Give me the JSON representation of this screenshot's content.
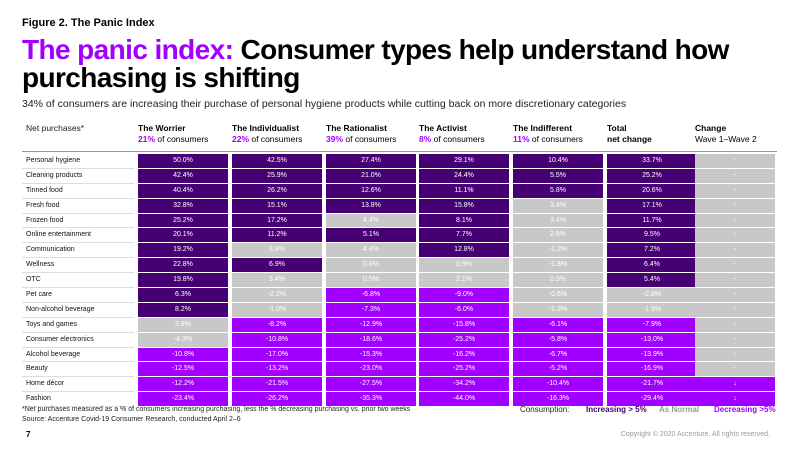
{
  "figure_label": "Figure 2. The Panic Index",
  "title_accent": "The panic index:",
  "title_rest": " Consumer types help understand how purchasing is shifting",
  "subtitle": "34% of consumers are increasing their purchase of personal hygiene products while cutting back on more discretionary categories",
  "header": {
    "net_purchases": "Net purchases*",
    "columns": [
      {
        "name": "The Worrier",
        "share": "21%",
        "share_suffix": " of consumers"
      },
      {
        "name": "The Individualist",
        "share": "22%",
        "share_suffix": " of consumers"
      },
      {
        "name": "The Rationalist",
        "share": "39%",
        "share_suffix": " of consumers"
      },
      {
        "name": "The Activist",
        "share": "8%",
        "share_suffix": " of consumers"
      },
      {
        "name": "The Indifferent",
        "share": "11%",
        "share_suffix": " of consumers"
      },
      {
        "name": "Total",
        "line2": "net change"
      },
      {
        "name": "Change",
        "line2": "Wave 1–Wave 2"
      }
    ]
  },
  "colors": {
    "increasing": "#460073",
    "normal": "#c8c8c8",
    "decreasing": "#a100ff"
  },
  "chart_data": {
    "type": "table",
    "columns": [
      "The Worrier",
      "The Individualist",
      "The Rationalist",
      "The Activist",
      "The Indifferent",
      "Total net change",
      "Change Wave 1–Wave 2"
    ],
    "rows": [
      {
        "label": "Personal hygiene",
        "cells": [
          [
            "50.0%",
            "inc"
          ],
          [
            "42.5%",
            "inc"
          ],
          [
            "27.4%",
            "inc"
          ],
          [
            "29.1%",
            "inc"
          ],
          [
            "10.4%",
            "inc"
          ],
          [
            "33.7%",
            "inc"
          ],
          [
            "-",
            "norm"
          ]
        ]
      },
      {
        "label": "Cleaning products",
        "cells": [
          [
            "42.4%",
            "inc"
          ],
          [
            "25.9%",
            "inc"
          ],
          [
            "21.0%",
            "inc"
          ],
          [
            "24.4%",
            "inc"
          ],
          [
            "5.5%",
            "inc"
          ],
          [
            "25.2%",
            "inc"
          ],
          [
            "-",
            "norm"
          ]
        ]
      },
      {
        "label": "Tinned food",
        "cells": [
          [
            "40.4%",
            "inc"
          ],
          [
            "26.2%",
            "inc"
          ],
          [
            "12.6%",
            "inc"
          ],
          [
            "11.1%",
            "inc"
          ],
          [
            "5.8%",
            "inc"
          ],
          [
            "20.6%",
            "inc"
          ],
          [
            "-",
            "norm"
          ]
        ]
      },
      {
        "label": "Fresh food",
        "cells": [
          [
            "32.8%",
            "inc"
          ],
          [
            "15.1%",
            "inc"
          ],
          [
            "13.8%",
            "inc"
          ],
          [
            "15.8%",
            "inc"
          ],
          [
            "3.4%",
            "norm"
          ],
          [
            "17.1%",
            "inc"
          ],
          [
            "-",
            "norm"
          ]
        ]
      },
      {
        "label": "Frozen food",
        "cells": [
          [
            "25.2%",
            "inc"
          ],
          [
            "17.2%",
            "inc"
          ],
          [
            "4.4%",
            "norm"
          ],
          [
            "8.1%",
            "inc"
          ],
          [
            "3.4%",
            "norm"
          ],
          [
            "11.7%",
            "inc"
          ],
          [
            "-",
            "norm"
          ]
        ]
      },
      {
        "label": "Online entertainment",
        "cells": [
          [
            "20.1%",
            "inc"
          ],
          [
            "11.2%",
            "inc"
          ],
          [
            "5.1%",
            "inc"
          ],
          [
            "7.7%",
            "inc"
          ],
          [
            "2.8%",
            "norm"
          ],
          [
            "9.5%",
            "inc"
          ],
          [
            "-",
            "norm"
          ]
        ]
      },
      {
        "label": "Communication",
        "cells": [
          [
            "19.2%",
            "inc"
          ],
          [
            "3.8%",
            "norm"
          ],
          [
            "4.4%",
            "norm"
          ],
          [
            "12.8%",
            "inc"
          ],
          [
            "-1.2%",
            "norm"
          ],
          [
            "7.2%",
            "inc"
          ],
          [
            "-",
            "norm"
          ]
        ]
      },
      {
        "label": "Wellness",
        "cells": [
          [
            "22.8%",
            "inc"
          ],
          [
            "6.9%",
            "inc"
          ],
          [
            "0.6%",
            "norm"
          ],
          [
            "0.9%",
            "norm"
          ],
          [
            "-1.8%",
            "norm"
          ],
          [
            "6.4%",
            "inc"
          ],
          [
            "-",
            "norm"
          ]
        ]
      },
      {
        "label": "OTC",
        "cells": [
          [
            "19.8%",
            "inc"
          ],
          [
            "3.4%",
            "norm"
          ],
          [
            "0.5%",
            "norm"
          ],
          [
            "2.1%",
            "norm"
          ],
          [
            "0.9%",
            "norm"
          ],
          [
            "5.4%",
            "inc"
          ],
          [
            "-",
            "norm"
          ]
        ]
      },
      {
        "label": "Pet care",
        "cells": [
          [
            "6.3%",
            "inc"
          ],
          [
            "-2.2%",
            "norm"
          ],
          [
            "-6.8%",
            "dec"
          ],
          [
            "-9.0%",
            "dec"
          ],
          [
            "-0.6%",
            "norm"
          ],
          [
            "-2.8%",
            "norm"
          ],
          [
            "-",
            "norm"
          ]
        ]
      },
      {
        "label": "Non-alcohol beverage",
        "cells": [
          [
            "8.2%",
            "inc"
          ],
          [
            "-1.0%",
            "norm"
          ],
          [
            "-7.3%",
            "dec"
          ],
          [
            "-6.0%",
            "dec"
          ],
          [
            "-1.3%",
            "norm"
          ],
          [
            "-1.9%",
            "norm"
          ],
          [
            "-",
            "norm"
          ]
        ]
      },
      {
        "label": "Toys and games",
        "cells": [
          [
            "3.8%",
            "norm"
          ],
          [
            "-8.2%",
            "dec"
          ],
          [
            "-12.9%",
            "dec"
          ],
          [
            "-15.8%",
            "dec"
          ],
          [
            "-6.1%",
            "dec"
          ],
          [
            "-7.9%",
            "dec"
          ],
          [
            "-",
            "norm"
          ]
        ]
      },
      {
        "label": "Consumer electronics",
        "cells": [
          [
            "-4.3%",
            "norm"
          ],
          [
            "-10.8%",
            "dec"
          ],
          [
            "-18.6%",
            "dec"
          ],
          [
            "-25.2%",
            "dec"
          ],
          [
            "-5.8%",
            "dec"
          ],
          [
            "-13.0%",
            "dec"
          ],
          [
            "-",
            "norm"
          ]
        ]
      },
      {
        "label": "Alcohol beverage",
        "cells": [
          [
            "-10.8%",
            "dec"
          ],
          [
            "-17.0%",
            "dec"
          ],
          [
            "-15.3%",
            "dec"
          ],
          [
            "-16.2%",
            "dec"
          ],
          [
            "-6.7%",
            "dec"
          ],
          [
            "-13.9%",
            "dec"
          ],
          [
            "-",
            "norm"
          ]
        ]
      },
      {
        "label": "Beauty",
        "cells": [
          [
            "-12.5%",
            "dec"
          ],
          [
            "-13.2%",
            "dec"
          ],
          [
            "-23.0%",
            "dec"
          ],
          [
            "-25.2%",
            "dec"
          ],
          [
            "-5.2%",
            "dec"
          ],
          [
            "-16.9%",
            "dec"
          ],
          [
            "-",
            "norm"
          ]
        ]
      },
      {
        "label": "Home décor",
        "cells": [
          [
            "-12.2%",
            "dec"
          ],
          [
            "-21.5%",
            "dec"
          ],
          [
            "-27.5%",
            "dec"
          ],
          [
            "-34.2%",
            "dec"
          ],
          [
            "-10.4%",
            "dec"
          ],
          [
            "-21.7%",
            "dec"
          ],
          [
            "↓",
            "dec"
          ]
        ]
      },
      {
        "label": "Fashion",
        "cells": [
          [
            "-23.4%",
            "dec"
          ],
          [
            "-26.2%",
            "dec"
          ],
          [
            "-35.3%",
            "dec"
          ],
          [
            "-44.0%",
            "dec"
          ],
          [
            "-16.3%",
            "dec"
          ],
          [
            "-29.4%",
            "dec"
          ],
          [
            "↓",
            "dec"
          ]
        ]
      }
    ]
  },
  "footnote_1": "*Net purchases measured as a % of consumers increasing purchasing, less the % decreasing purchasing vs. prior two weeks",
  "footnote_2": "Source: Accenture Covid-19 Consumer Research, conducted April 2–6",
  "legend": {
    "title": "Consumption:",
    "increasing": "Increasing > 5%",
    "normal": "As Normal",
    "decreasing": "Decreasing >5%"
  },
  "page_number": "7",
  "copyright": "Copyright © 2020 Accenture. All rights reserved."
}
